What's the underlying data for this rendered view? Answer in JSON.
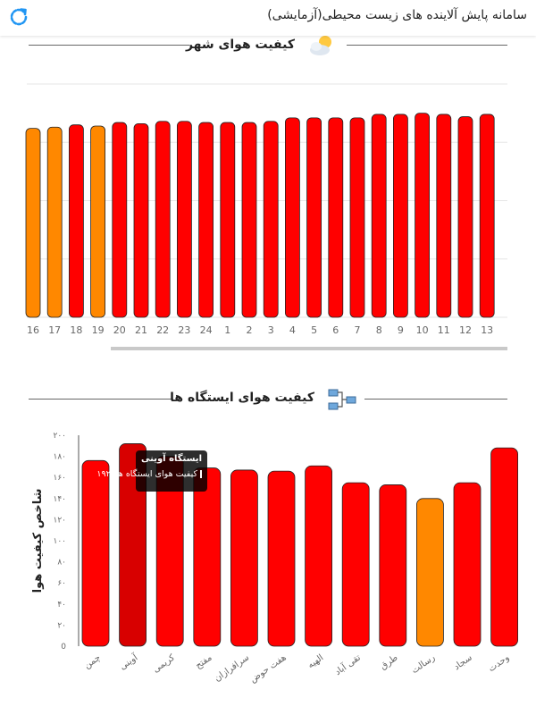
{
  "app": {
    "title": "سامانه پایش آلاینده های زیست محیطی(آزمایشی)",
    "refresh_icon": "refresh-icon",
    "accent_color": "#2196f3"
  },
  "hourly_section": {
    "title": "کیفیت هوای شهر",
    "icon": "weather-icon"
  },
  "station_section": {
    "title": "کیفیت هوای ایستگاه ها",
    "icon": "network-icon"
  },
  "tooltip": {
    "title": "ایستگاه آوینی",
    "value_text": "کیفیت هوای ایستگاه ها: ۱۹۲"
  },
  "colors": {
    "unhealthy": "#ff0000",
    "sensitive": "#ff8800",
    "highlight": "#d80000"
  },
  "chart_data": [
    {
      "type": "bar",
      "title": "کیفیت هوای شهر",
      "categories": [
        "16",
        "17",
        "18",
        "19",
        "20",
        "21",
        "22",
        "23",
        "24",
        "1",
        "2",
        "3",
        "4",
        "5",
        "6",
        "7",
        "8",
        "9",
        "10",
        "11",
        "12",
        "13"
      ],
      "values": [
        162,
        163,
        165,
        164,
        167,
        166,
        168,
        168,
        167,
        167,
        167,
        168,
        171,
        171,
        171,
        171,
        174,
        174,
        175,
        174,
        172,
        174
      ],
      "colors": [
        "#ff8800",
        "#ff8800",
        "#ff0000",
        "#ff8800",
        "#ff0000",
        "#ff0000",
        "#ff0000",
        "#ff0000",
        "#ff0000",
        "#ff0000",
        "#ff0000",
        "#ff0000",
        "#ff0000",
        "#ff0000",
        "#ff0000",
        "#ff0000",
        "#ff0000",
        "#ff0000",
        "#ff0000",
        "#ff0000",
        "#ff0000",
        "#ff0000"
      ],
      "ylim": [
        0,
        200
      ],
      "grid": true
    },
    {
      "type": "bar",
      "title": "کیفیت هوای ایستگاه ها",
      "ylabel": "شاخص کیفیت هوا",
      "categories": [
        "چمن",
        "آوینی",
        "کریمی",
        "مفتح",
        "سرافرازان",
        "هفت حوض",
        "الهیه",
        "تقی آباد",
        "طرق",
        "رسالت",
        "سجاد",
        "وحدت"
      ],
      "values": [
        176,
        192,
        180,
        169,
        167,
        166,
        171,
        155,
        153,
        140,
        155,
        188
      ],
      "colors": [
        "#ff0000",
        "#d80000",
        "#ff0000",
        "#ff0000",
        "#ff0000",
        "#ff0000",
        "#ff0000",
        "#ff0000",
        "#ff0000",
        "#ff8800",
        "#ff0000",
        "#ff0000"
      ],
      "yticks": [
        "0",
        "۲۰",
        "۴۰",
        "۶۰",
        "۸۰",
        "۱۰۰",
        "۱۲۰",
        "۱۴۰",
        "۱۶۰",
        "۱۸۰",
        "۲۰۰"
      ],
      "ylim": [
        0,
        200
      ],
      "grid": false
    }
  ]
}
